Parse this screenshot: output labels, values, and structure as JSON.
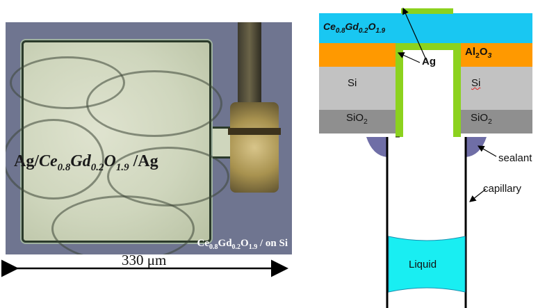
{
  "photo": {
    "label": {
      "pre": "Ag/",
      "el1": "Ce",
      "sub1": "0.8",
      "el2": "Gd",
      "sub2": "0.2",
      "el3": "O",
      "sub3": "1.9",
      "post": " /Ag"
    },
    "caption": {
      "el1": "Ce",
      "sub1": "0.8",
      "el2": "Gd",
      "sub2": "0.2",
      "el3": "O",
      "sub3": "1.9",
      "post": " / on Si"
    },
    "scale": "330 μm"
  },
  "diagram": {
    "cgo": {
      "el1": "Ce",
      "sub1": "0.8",
      "el2": "Gd",
      "sub2": "0.2",
      "el3": "O",
      "sub3": "1.9"
    },
    "alumina": {
      "el1": "Al",
      "sub1": "2",
      "el2": "O",
      "sub2": "3"
    },
    "ag": "Ag",
    "si_left": "Si",
    "si_right": "Si",
    "sio2_left": {
      "el": "SiO",
      "sub": "2"
    },
    "sio2_right": {
      "el": "SiO",
      "sub": "2"
    },
    "sealant": "sealant",
    "capillary": "capillary",
    "liquid": "Liquid"
  },
  "colors": {
    "cgo": "#19c7f2",
    "alumina": "#ff9900",
    "si": "#c2c2c2",
    "sio2": "#8f8f8f",
    "ag": "#8cd21e",
    "sealant": "#6f6ea6",
    "liquid": "#19eef2"
  }
}
